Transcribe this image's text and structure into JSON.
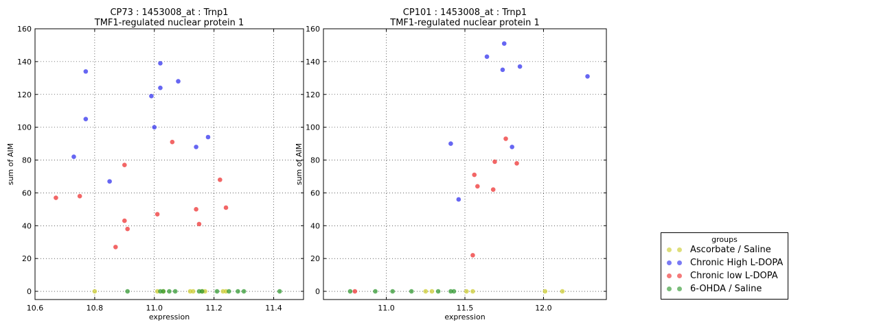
{
  "chart_data": [
    {
      "type": "scatter",
      "title": "CP73 : 1453008_at : Trnp1",
      "subtitle": "TMF1-regulated nuclear protein 1",
      "xlabel": "expression",
      "ylabel": "sum of AIM",
      "xlim": [
        10.6,
        11.5
      ],
      "ylim": [
        -5,
        160
      ],
      "xticks": [
        "10.6",
        "10.8",
        "11.0",
        "11.2",
        "11.4"
      ],
      "yticks": [
        "0",
        "20",
        "40",
        "60",
        "80",
        "100",
        "120",
        "140",
        "160"
      ],
      "grid": true,
      "series": [
        {
          "name": "Ascorbate / Saline",
          "color": "#cccc33",
          "x": [
            10.8,
            11.01,
            11.03,
            11.12,
            11.13,
            11.16,
            11.17,
            11.23,
            11.24
          ],
          "y": [
            0,
            0,
            0,
            0,
            0,
            0,
            0,
            0,
            0
          ]
        },
        {
          "name": "Chronic High L-DOPA",
          "color": "#3333ee",
          "x": [
            10.73,
            10.77,
            10.77,
            10.85,
            10.99,
            11.0,
            11.02,
            11.02,
            11.08,
            11.14,
            11.18
          ],
          "y": [
            82,
            105,
            134,
            67,
            119,
            100,
            124,
            139,
            128,
            88,
            94
          ]
        },
        {
          "name": "Chronic low L-DOPA",
          "color": "#ee3333",
          "x": [
            10.67,
            10.75,
            10.87,
            10.9,
            10.9,
            10.91,
            11.01,
            11.06,
            11.14,
            11.15,
            11.22,
            11.24
          ],
          "y": [
            57,
            58,
            27,
            77,
            43,
            38,
            47,
            91,
            50,
            41,
            68,
            51
          ]
        },
        {
          "name": "6-OHDA / Saline",
          "color": "#339933",
          "x": [
            10.91,
            11.02,
            11.03,
            11.05,
            11.07,
            11.15,
            11.16,
            11.21,
            11.25,
            11.28,
            11.3,
            11.42
          ],
          "y": [
            0,
            0,
            0,
            0,
            0,
            0,
            0,
            0,
            0,
            0,
            0,
            0
          ]
        }
      ]
    },
    {
      "type": "scatter",
      "title": "CP101 : 1453008_at : Trnp1",
      "subtitle": "TMF1-regulated nuclear protein 1",
      "xlabel": "expression",
      "ylabel": "sum of AIM",
      "xlim": [
        10.6,
        12.4
      ],
      "ylim": [
        -5,
        160
      ],
      "xticks": [
        "11.0",
        "11.5",
        "12.0"
      ],
      "yticks": [
        "0",
        "20",
        "40",
        "60",
        "80",
        "100",
        "120",
        "140",
        "160"
      ],
      "grid": true,
      "series": [
        {
          "name": "Ascorbate / Saline",
          "color": "#cccc33",
          "x": [
            11.25,
            11.29,
            11.51,
            11.55,
            12.01,
            12.12
          ],
          "y": [
            0,
            0,
            0,
            0,
            0,
            0
          ]
        },
        {
          "name": "Chronic High L-DOPA",
          "color": "#3333ee",
          "x": [
            11.41,
            11.46,
            11.64,
            11.74,
            11.75,
            11.8,
            11.85,
            12.28
          ],
          "y": [
            90,
            56,
            143,
            135,
            151,
            88,
            137,
            131
          ]
        },
        {
          "name": "Chronic low L-DOPA",
          "color": "#ee3333",
          "x": [
            10.8,
            11.55,
            11.56,
            11.58,
            11.68,
            11.69,
            11.76,
            11.83
          ],
          "y": [
            0,
            22,
            71,
            64,
            62,
            79,
            93,
            78
          ]
        },
        {
          "name": "6-OHDA / Saline",
          "color": "#339933",
          "x": [
            10.77,
            10.93,
            11.04,
            11.16,
            11.33,
            11.41,
            11.43
          ],
          "y": [
            0,
            0,
            0,
            0,
            0,
            0,
            0
          ]
        }
      ]
    }
  ],
  "legend": {
    "title": "groups",
    "placement": "lower-right",
    "items": [
      {
        "label": "Ascorbate / Saline",
        "color": "#cccc33"
      },
      {
        "label": "Chronic High L-DOPA",
        "color": "#3333ee"
      },
      {
        "label": "Chronic low L-DOPA",
        "color": "#ee3333"
      },
      {
        "label": "6-OHDA / Saline",
        "color": "#339933"
      }
    ]
  }
}
